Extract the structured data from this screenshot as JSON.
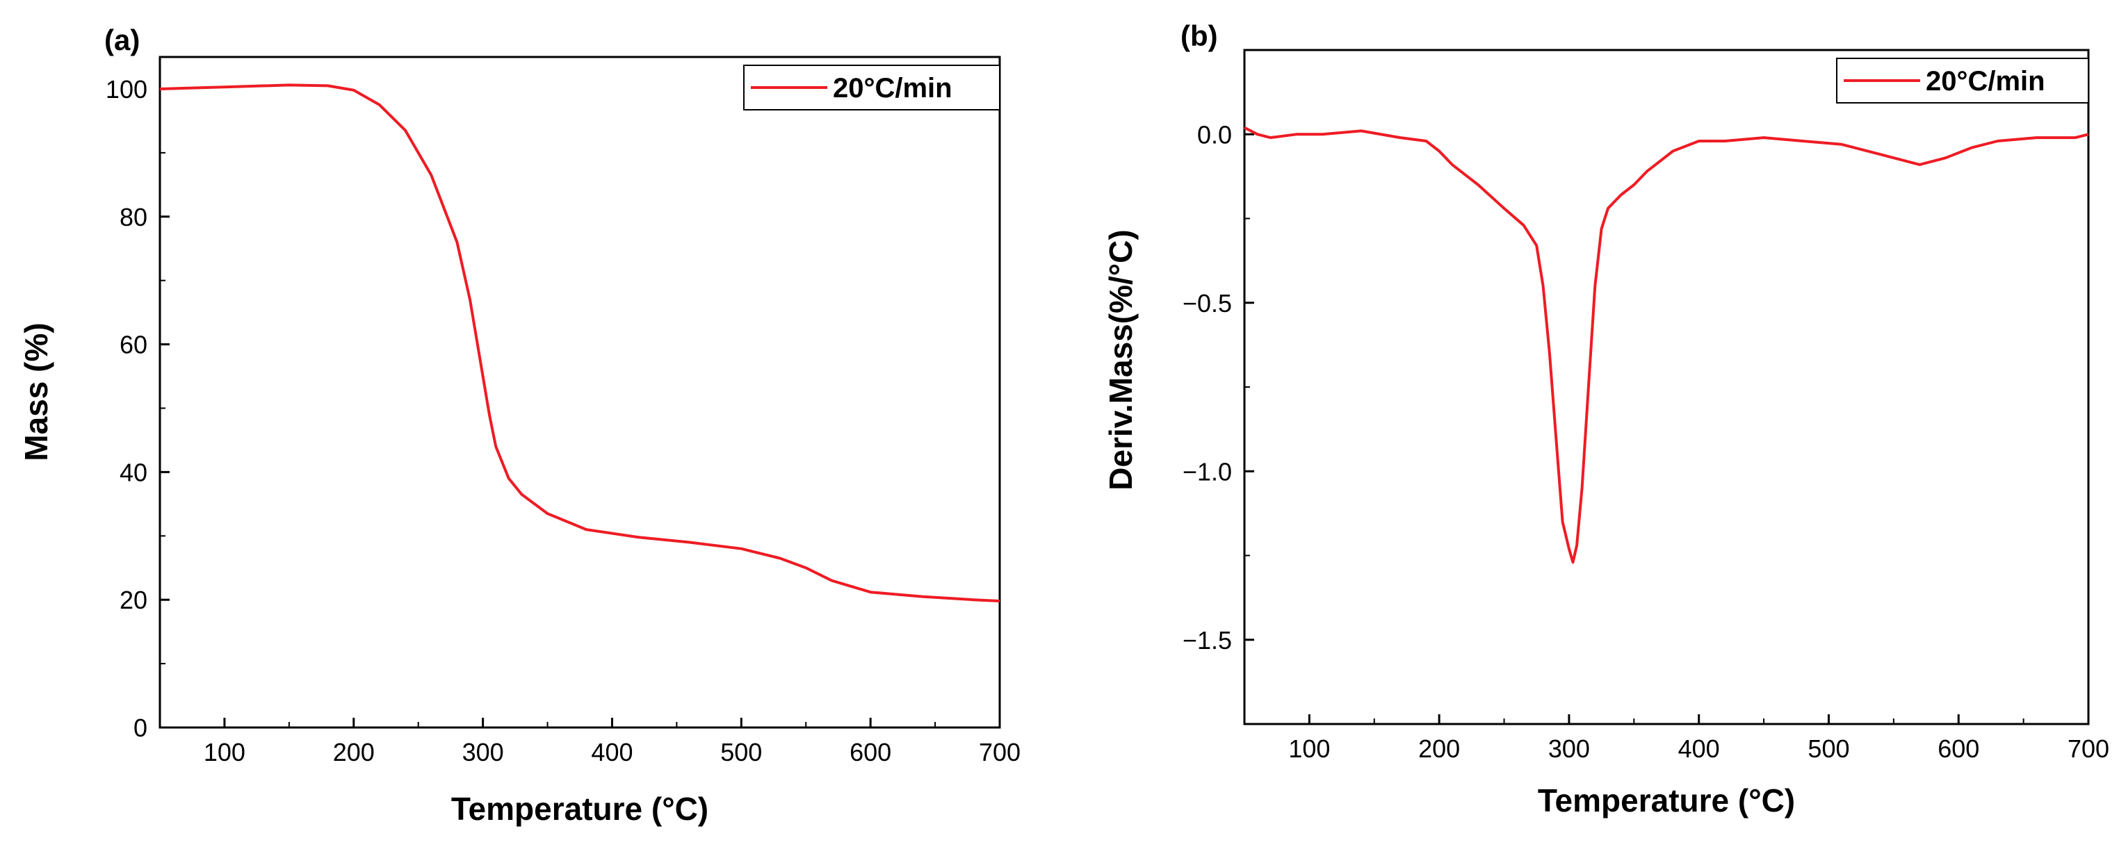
{
  "colors": {
    "series": "#ee1c24",
    "axis": "#000000",
    "background": "#ffffff"
  },
  "chart_data": [
    {
      "panel_label": "(a)",
      "type": "line",
      "title": "",
      "xlabel": "Temperature (°C)",
      "ylabel": "Mass (%)",
      "xlim": [
        50,
        700
      ],
      "ylim": [
        0,
        105
      ],
      "xticks": [
        100,
        200,
        300,
        400,
        500,
        600,
        700
      ],
      "xtick_labels": [
        "100",
        "200",
        "300",
        "400",
        "500",
        "600",
        "700"
      ],
      "yticks": [
        0,
        20,
        40,
        60,
        80,
        100
      ],
      "ytick_labels": [
        "0",
        "20",
        "40",
        "60",
        "80",
        "100"
      ],
      "grid": false,
      "legend": {
        "position": "top-right",
        "entries": [
          "20°C/min"
        ]
      },
      "series": [
        {
          "name": "20°C/min",
          "x": [
            50,
            100,
            150,
            180,
            200,
            220,
            240,
            260,
            280,
            290,
            300,
            305,
            310,
            320,
            330,
            350,
            380,
            420,
            460,
            500,
            530,
            550,
            570,
            600,
            640,
            680,
            700
          ],
          "y": [
            100.0,
            100.3,
            100.6,
            100.5,
            99.8,
            97.5,
            93.5,
            86.5,
            76.0,
            67.0,
            55.0,
            49.0,
            44.0,
            39.0,
            36.5,
            33.5,
            31.0,
            29.8,
            29.0,
            28.0,
            26.5,
            25.0,
            23.0,
            21.2,
            20.5,
            20.0,
            19.8
          ]
        }
      ]
    },
    {
      "panel_label": "(b)",
      "type": "line",
      "title": "",
      "xlabel": "Temperature (°C)",
      "ylabel": "Deriv.Mass(%/°C)",
      "xlim": [
        50,
        700
      ],
      "ylim": [
        -1.75,
        0.25
      ],
      "xticks": [
        100,
        200,
        300,
        400,
        500,
        600,
        700
      ],
      "xtick_labels": [
        "100",
        "200",
        "300",
        "400",
        "500",
        "600",
        "700"
      ],
      "yticks": [
        0.0,
        -0.5,
        -1.0,
        -1.5
      ],
      "ytick_labels": [
        "0.0",
        "−0.5",
        "−1.0",
        "−1.5"
      ],
      "grid": false,
      "legend": {
        "position": "top-right",
        "entries": [
          "20°C/min"
        ]
      },
      "series": [
        {
          "name": "20°C/min",
          "x": [
            50,
            60,
            70,
            90,
            110,
            140,
            170,
            190,
            200,
            210,
            230,
            250,
            265,
            275,
            280,
            285,
            290,
            295,
            300,
            303,
            306,
            310,
            315,
            320,
            325,
            330,
            340,
            350,
            360,
            370,
            380,
            400,
            420,
            450,
            480,
            510,
            540,
            560,
            570,
            590,
            610,
            630,
            660,
            690,
            700
          ],
          "y": [
            0.02,
            0.0,
            -0.01,
            0.0,
            0.0,
            0.01,
            -0.01,
            -0.02,
            -0.05,
            -0.09,
            -0.15,
            -0.22,
            -0.27,
            -0.33,
            -0.45,
            -0.65,
            -0.9,
            -1.15,
            -1.23,
            -1.27,
            -1.22,
            -1.05,
            -0.75,
            -0.45,
            -0.28,
            -0.22,
            -0.18,
            -0.15,
            -0.11,
            -0.08,
            -0.05,
            -0.02,
            -0.02,
            -0.01,
            -0.02,
            -0.03,
            -0.06,
            -0.08,
            -0.09,
            -0.07,
            -0.04,
            -0.02,
            -0.01,
            -0.01,
            0.0
          ]
        }
      ]
    }
  ]
}
